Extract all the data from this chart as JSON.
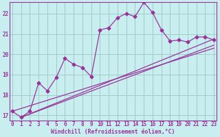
{
  "title": "",
  "xlabel": "Windchill (Refroidissement éolien,°C)",
  "bg_color": "#c8eef0",
  "grid_color": "#a0ccc8",
  "line_color": "#993399",
  "spine_color": "#993399",
  "x_ticks": [
    0,
    1,
    2,
    3,
    4,
    5,
    6,
    7,
    8,
    9,
    10,
    11,
    12,
    13,
    14,
    15,
    16,
    17,
    18,
    19,
    20,
    21,
    22,
    23
  ],
  "y_ticks": [
    17,
    18,
    19,
    20,
    21,
    22
  ],
  "xlim": [
    -0.3,
    23.3
  ],
  "ylim": [
    16.75,
    22.55
  ],
  "main_line_x": [
    0,
    1,
    2,
    3,
    4,
    5,
    6,
    7,
    8,
    9,
    10,
    11,
    12,
    13,
    14,
    15,
    16,
    17,
    18,
    19,
    20,
    21,
    22,
    23
  ],
  "main_line_y": [
    17.2,
    16.9,
    17.2,
    18.6,
    18.2,
    18.85,
    19.8,
    19.5,
    19.35,
    18.9,
    21.2,
    21.3,
    21.8,
    22.0,
    21.85,
    22.55,
    22.05,
    21.2,
    20.65,
    20.7,
    20.6,
    20.85,
    20.85,
    20.7
  ],
  "line2_x": [
    1,
    23
  ],
  "line2_y": [
    16.9,
    20.75
  ],
  "line3_x": [
    1,
    23
  ],
  "line3_y": [
    16.9,
    20.45
  ],
  "line4_x": [
    0,
    23
  ],
  "line4_y": [
    17.2,
    20.3
  ],
  "tick_fontsize": 5.5,
  "xlabel_fontsize": 5.8,
  "marker_size": 2.5
}
